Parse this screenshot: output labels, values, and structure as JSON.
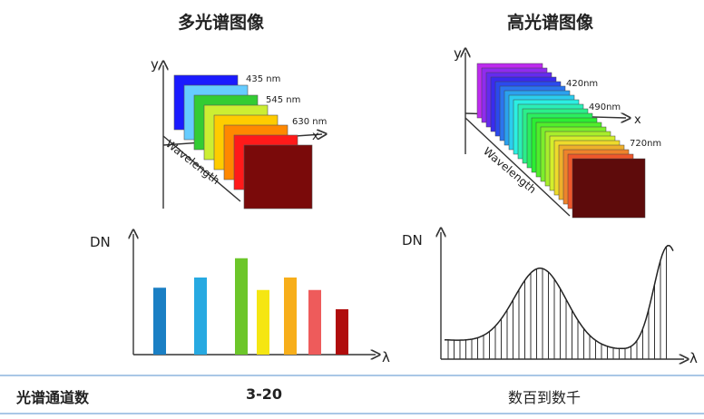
{
  "titles": {
    "multispectral": "多光谱图像",
    "hyperspectral": "高光谱图像"
  },
  "multispectral_cube": {
    "axis_y": "y",
    "axis_x": "x",
    "axis_wavelength": "Wavelength",
    "band_labels": [
      "435 nm",
      "545 nm",
      "630 nm"
    ],
    "band_colors": [
      "#1a1aff",
      "#66ccff",
      "#33cc33",
      "#ccee33",
      "#ffcc00",
      "#ff8800",
      "#ff1a1a",
      "#7a0a0a"
    ]
  },
  "hyperspectral_cube": {
    "axis_y": "y",
    "axis_x": "x",
    "axis_wavelength": "Wavelength",
    "band_labels": [
      "420nm",
      "490nm",
      "720nm"
    ]
  },
  "multispectral_chart": {
    "ylabel": "DN",
    "xlabel": "λ",
    "bars": [
      {
        "value": 0.59,
        "color": "#1a7fc4"
      },
      {
        "value": 0.68,
        "color": "#27a9e1"
      },
      {
        "value": 0.85,
        "color": "#6cc62a"
      },
      {
        "value": 0.57,
        "color": "#f5e612"
      },
      {
        "value": 0.68,
        "color": "#f7ae1a"
      },
      {
        "value": 0.57,
        "color": "#ee5b5b"
      },
      {
        "value": 0.4,
        "color": "#b00c0c"
      }
    ]
  },
  "hyperspectral_chart": {
    "ylabel": "DN",
    "xlabel": "λ"
  },
  "table": {
    "label": "光谱通道数",
    "multispectral": "3-20",
    "hyperspectral": "数百到数千"
  },
  "chart_data": [
    {
      "type": "bar",
      "categories": [
        "",
        "",
        "",
        "",
        "",
        "",
        ""
      ],
      "values": [
        0.59,
        0.68,
        0.85,
        0.57,
        0.68,
        0.57,
        0.4
      ],
      "title": "",
      "xlabel": "λ",
      "ylabel": "DN",
      "ylim": [
        0,
        1
      ]
    }
  ]
}
